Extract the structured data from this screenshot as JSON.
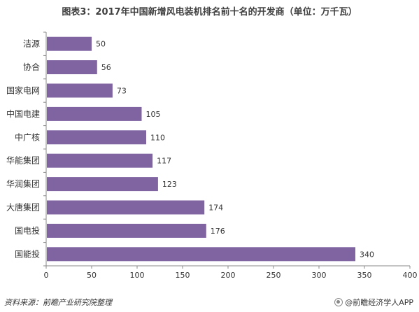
{
  "chart_data": {
    "type": "bar",
    "orientation": "horizontal",
    "title": "图表3：2017年中国新增风电装机排名前十名的开发商（单位：万千瓦）",
    "categories": [
      "洁源",
      "协合",
      "国家电网",
      "中国电建",
      "中广核",
      "华能集团",
      "华润集团",
      "大唐集团",
      "国电投",
      "国能投"
    ],
    "values": [
      50,
      56,
      73,
      105,
      110,
      117,
      123,
      174,
      176,
      340
    ],
    "xlim": [
      0,
      400
    ],
    "xticks": [
      0,
      50,
      100,
      150,
      200,
      250,
      300,
      350,
      400
    ],
    "grid": false,
    "legend": "none",
    "bar_color": "#8064A2"
  },
  "footer": {
    "source": "资料来源：前瞻产业研究院整理",
    "brand": "@前瞻经济学人APP",
    "brand_icon": "brand-circle-icon"
  }
}
